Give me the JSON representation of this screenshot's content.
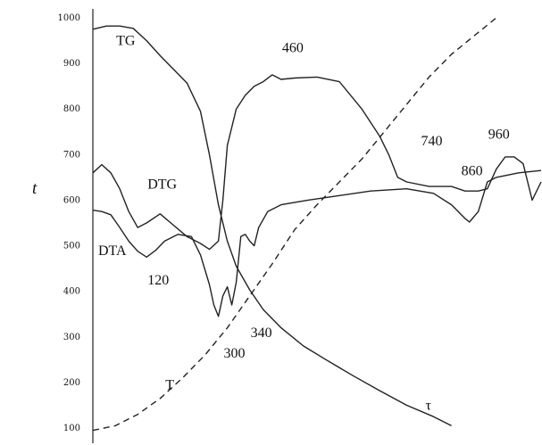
{
  "chart_data": {
    "type": "line",
    "title": "",
    "xlabel": "τ",
    "ylabel": "t",
    "ylim": [
      100,
      1000
    ],
    "ytick_labels": [
      "100",
      "200",
      "300",
      "400",
      "500",
      "600",
      "700",
      "800",
      "900",
      "1000"
    ],
    "ytick_values": [
      100,
      200,
      300,
      400,
      500,
      600,
      700,
      800,
      900,
      1000
    ],
    "x_axis_numeric_labels": false,
    "grid": false,
    "legend": "none",
    "series": [
      {
        "name": "TG",
        "dashed": false,
        "points": [
          [
            0.0,
            975
          ],
          [
            0.03,
            982
          ],
          [
            0.06,
            982
          ],
          [
            0.09,
            977
          ],
          [
            0.12,
            950
          ],
          [
            0.15,
            917
          ],
          [
            0.18,
            887
          ],
          [
            0.21,
            857
          ],
          [
            0.24,
            795
          ],
          [
            0.26,
            700
          ],
          [
            0.28,
            590
          ],
          [
            0.3,
            510
          ],
          [
            0.32,
            455
          ],
          [
            0.35,
            403
          ],
          [
            0.38,
            360
          ],
          [
            0.42,
            320
          ],
          [
            0.47,
            280
          ],
          [
            0.52,
            250
          ],
          [
            0.58,
            215
          ],
          [
            0.64,
            182
          ],
          [
            0.7,
            150
          ],
          [
            0.76,
            125
          ],
          [
            0.8,
            105
          ]
        ]
      },
      {
        "name": "DTG",
        "dashed": false,
        "points": [
          [
            0.0,
            660
          ],
          [
            0.02,
            678
          ],
          [
            0.04,
            660
          ],
          [
            0.06,
            625
          ],
          [
            0.08,
            575
          ],
          [
            0.1,
            540
          ],
          [
            0.12,
            550
          ],
          [
            0.15,
            570
          ],
          [
            0.18,
            545
          ],
          [
            0.21,
            520
          ],
          [
            0.24,
            505
          ],
          [
            0.26,
            492
          ],
          [
            0.28,
            510
          ],
          [
            0.29,
            600
          ],
          [
            0.3,
            720
          ],
          [
            0.32,
            800
          ],
          [
            0.34,
            830
          ],
          [
            0.36,
            850
          ],
          [
            0.38,
            860
          ],
          [
            0.4,
            875
          ],
          [
            0.42,
            865
          ],
          [
            0.45,
            868
          ],
          [
            0.5,
            870
          ],
          [
            0.55,
            860
          ],
          [
            0.6,
            800
          ],
          [
            0.64,
            740
          ],
          [
            0.66,
            700
          ],
          [
            0.68,
            650
          ],
          [
            0.7,
            640
          ],
          [
            0.75,
            630
          ],
          [
            0.8,
            630
          ],
          [
            0.83,
            620
          ],
          [
            0.86,
            620
          ],
          [
            0.88,
            625
          ],
          [
            0.9,
            668
          ],
          [
            0.92,
            695
          ],
          [
            0.94,
            695
          ],
          [
            0.96,
            680
          ],
          [
            0.98,
            600
          ],
          [
            1.0,
            640
          ]
        ]
      },
      {
        "name": "DTA",
        "dashed": false,
        "points": [
          [
            0.0,
            578
          ],
          [
            0.02,
            575
          ],
          [
            0.04,
            568
          ],
          [
            0.06,
            540
          ],
          [
            0.08,
            510
          ],
          [
            0.1,
            488
          ],
          [
            0.12,
            475
          ],
          [
            0.14,
            490
          ],
          [
            0.16,
            510
          ],
          [
            0.19,
            525
          ],
          [
            0.22,
            520
          ],
          [
            0.24,
            480
          ],
          [
            0.26,
            415
          ],
          [
            0.27,
            370
          ],
          [
            0.28,
            345
          ],
          [
            0.29,
            390
          ],
          [
            0.3,
            410
          ],
          [
            0.31,
            370
          ],
          [
            0.32,
            420
          ],
          [
            0.33,
            520
          ],
          [
            0.34,
            525
          ],
          [
            0.35,
            510
          ],
          [
            0.36,
            500
          ],
          [
            0.37,
            540
          ],
          [
            0.39,
            575
          ],
          [
            0.42,
            590
          ],
          [
            0.48,
            600
          ],
          [
            0.55,
            610
          ],
          [
            0.62,
            620
          ],
          [
            0.7,
            625
          ],
          [
            0.76,
            615
          ],
          [
            0.8,
            590
          ],
          [
            0.83,
            560
          ],
          [
            0.84,
            552
          ],
          [
            0.86,
            575
          ],
          [
            0.88,
            640
          ],
          [
            0.9,
            650
          ],
          [
            0.95,
            660
          ],
          [
            1.0,
            665
          ]
        ]
      },
      {
        "name": "T",
        "dashed": true,
        "points": [
          [
            0.0,
            95
          ],
          [
            0.05,
            105
          ],
          [
            0.1,
            130
          ],
          [
            0.15,
            165
          ],
          [
            0.2,
            210
          ],
          [
            0.25,
            260
          ],
          [
            0.3,
            320
          ],
          [
            0.35,
            390
          ],
          [
            0.4,
            460
          ],
          [
            0.45,
            535
          ],
          [
            0.5,
            590
          ],
          [
            0.55,
            640
          ],
          [
            0.6,
            690
          ],
          [
            0.65,
            750
          ],
          [
            0.7,
            810
          ],
          [
            0.75,
            870
          ],
          [
            0.8,
            920
          ],
          [
            0.85,
            960
          ],
          [
            0.9,
            1000
          ]
        ]
      }
    ],
    "annotations": [
      {
        "text": "TG",
        "x": 0.04,
        "y": 940
      },
      {
        "text": "DTG",
        "x": 0.11,
        "y": 625
      },
      {
        "text": "DTA",
        "x": 0.0,
        "y": 480
      },
      {
        "text": "120",
        "x": 0.11,
        "y": 415
      },
      {
        "text": "460",
        "x": 0.41,
        "y": 925
      },
      {
        "text": "340",
        "x": 0.34,
        "y": 300
      },
      {
        "text": "300",
        "x": 0.28,
        "y": 255
      },
      {
        "text": "T",
        "x": 0.15,
        "y": 185
      },
      {
        "text": "740",
        "x": 0.72,
        "y": 720
      },
      {
        "text": "860",
        "x": 0.81,
        "y": 655
      },
      {
        "text": "960",
        "x": 0.87,
        "y": 735
      },
      {
        "text": "τ",
        "x": 0.73,
        "y": 140
      }
    ]
  }
}
